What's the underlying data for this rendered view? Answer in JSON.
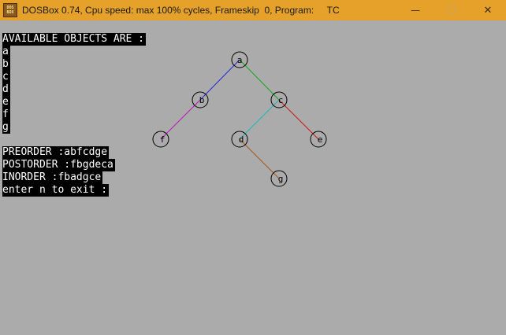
{
  "window": {
    "title": "DOSBox 0.74, Cpu speed: max 100% cycles, Frameskip  0, Program:     TC",
    "icon_text_top": "DOS",
    "icon_text_bottom": "BOX",
    "controls": {
      "minimize": "—",
      "maximize": "☐",
      "close": "✕"
    },
    "accent_color": "#e5a12a"
  },
  "console": {
    "header": "AVAILABLE OBJECTS ARE :",
    "objects": [
      "a",
      "b",
      "c",
      "d",
      "e",
      "f",
      "g"
    ],
    "preorder": "PREORDER :abfcdge",
    "postorder": "POSTORDER :fbgdeca",
    "inorder": "INORDER :fbadgce",
    "prompt": "enter n to exit :"
  },
  "tree": {
    "nodes": [
      {
        "id": "a",
        "label": "a"
      },
      {
        "id": "b",
        "label": "b"
      },
      {
        "id": "c",
        "label": "c"
      },
      {
        "id": "f",
        "label": "f"
      },
      {
        "id": "d",
        "label": "d"
      },
      {
        "id": "e",
        "label": "e"
      },
      {
        "id": "g",
        "label": "g"
      }
    ],
    "edges": [
      {
        "from": "a",
        "to": "b",
        "color": "#2828d8"
      },
      {
        "from": "a",
        "to": "c",
        "color": "#18a818"
      },
      {
        "from": "b",
        "to": "f",
        "color": "#b818b8"
      },
      {
        "from": "c",
        "to": "d",
        "color": "#18b8b8"
      },
      {
        "from": "c",
        "to": "e",
        "color": "#c81818"
      },
      {
        "from": "d",
        "to": "g",
        "color": "#a85818"
      }
    ]
  }
}
